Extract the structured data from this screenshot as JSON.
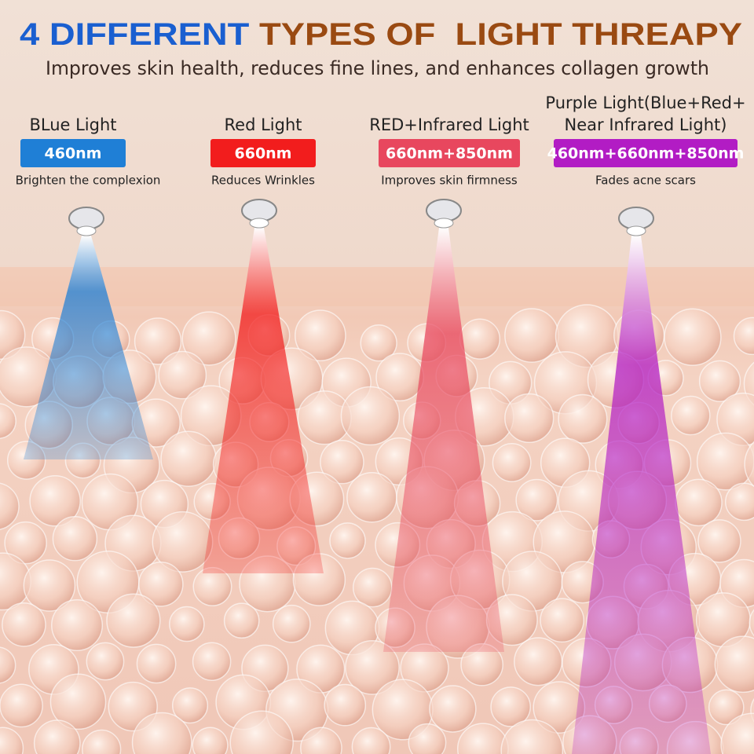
{
  "header": {
    "title_highlight": "4 DIFFERENT",
    "title_rest": "TYPES OF  LIGHT THREAPY",
    "subtitle": "Improves skin health, reduces fine lines, and enhances collagen growth"
  },
  "lights": [
    {
      "name_lines": [
        "BLue Light"
      ],
      "wavelength": "460nm",
      "benefit": "Brighten the complexion",
      "color": "#1f7fd6"
    },
    {
      "name_lines": [
        "Red Light"
      ],
      "wavelength": "660nm",
      "benefit": "Reduces Wrinkles",
      "color": "#f21d1d"
    },
    {
      "name_lines": [
        "RED+Infrared Light"
      ],
      "wavelength": "660nm+850nm",
      "benefit": "Improves skin firmness",
      "color": "#e8475e"
    },
    {
      "name_lines": [
        "Purple Light(Blue+Red+",
        "Near Infrared Light)"
      ],
      "wavelength": "460nm+660nm+850nm",
      "benefit": "Fades acne scars",
      "color": "#b21cc4"
    }
  ]
}
